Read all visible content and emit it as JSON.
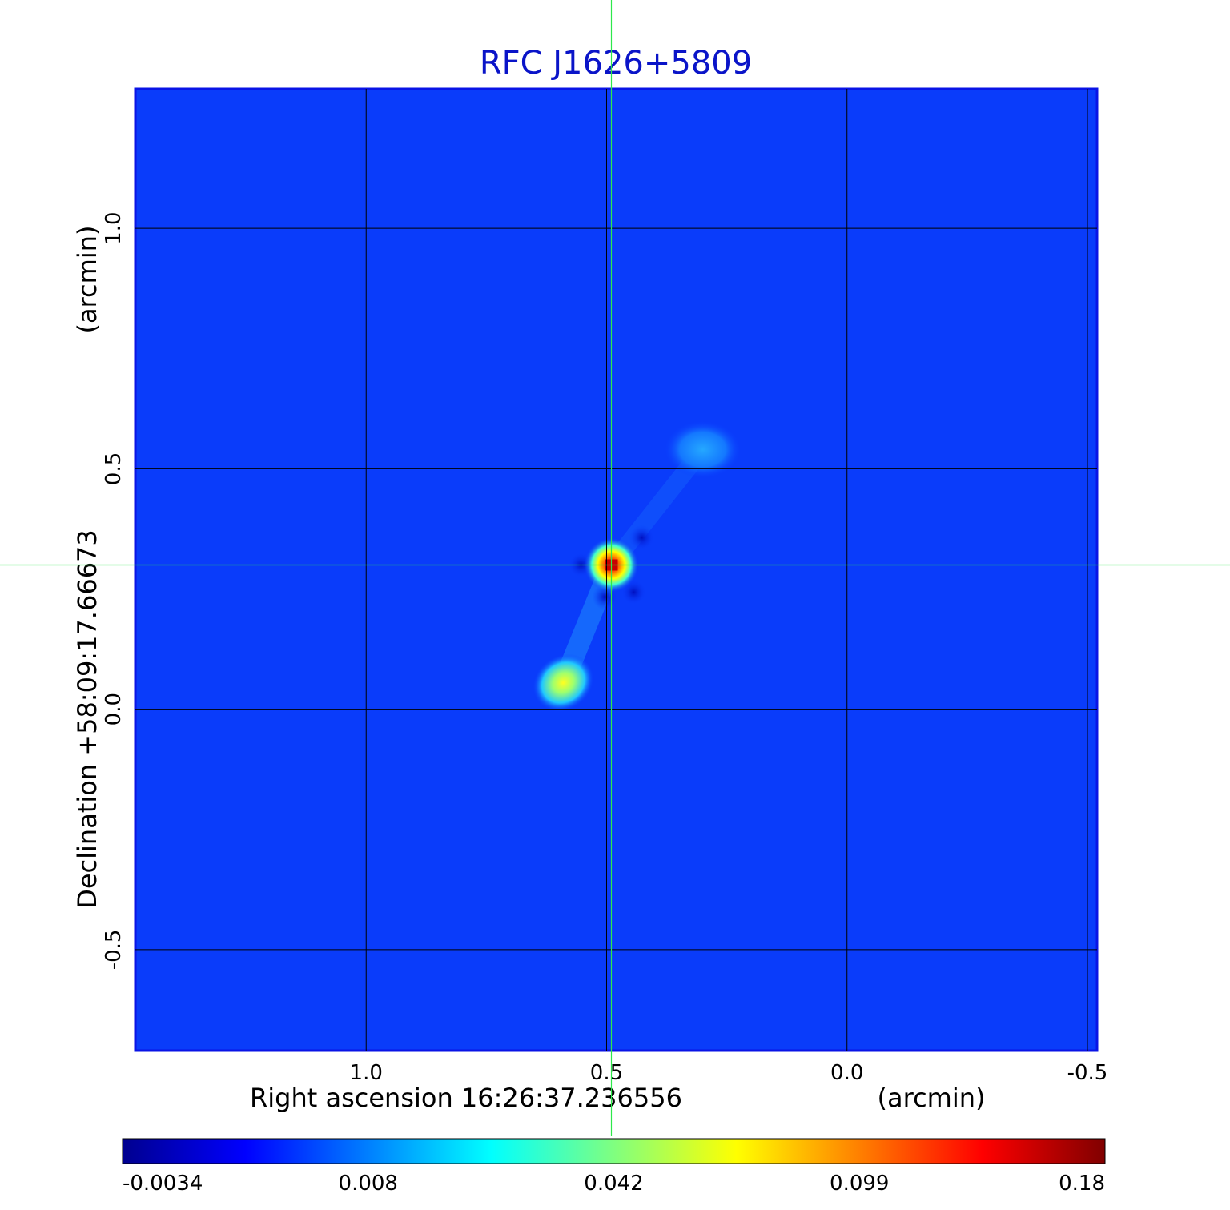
{
  "chart_data": {
    "type": "heatmap",
    "title": "RFC J1626+5809",
    "xlabel": "Right ascension  16:26:37.236556",
    "xunit": "(arcmin)",
    "ylabel": "Declination  +58:09:17.66673",
    "yunit": "(arcmin)",
    "xlim": [
      1.48,
      -0.52
    ],
    "ylim": [
      -0.71,
      1.29
    ],
    "x_ticks": [
      {
        "value": 1.0,
        "label": "1.0"
      },
      {
        "value": 0.5,
        "label": "0.5"
      },
      {
        "value": 0.0,
        "label": "0.0"
      },
      {
        "value": -0.5,
        "label": "-0.5"
      }
    ],
    "y_ticks": [
      {
        "value": 1.0,
        "label": "1.0"
      },
      {
        "value": 0.5,
        "label": "0.5"
      },
      {
        "value": 0.0,
        "label": "0.0"
      },
      {
        "value": -0.5,
        "label": "-0.5"
      }
    ],
    "grid": true,
    "crosshair": {
      "x": 0.49,
      "y": 0.3
    },
    "colormap": "jet",
    "colorbar": {
      "position": "bottom",
      "ticks": [
        "-0.0034",
        "0.008",
        "0.042",
        "0.099",
        "0.18"
      ],
      "range": [
        -0.0034,
        0.18
      ]
    },
    "sources": [
      {
        "x": 0.49,
        "y": 0.3,
        "intensity": 0.18
      },
      {
        "x": 0.59,
        "y": 0.055,
        "intensity": 0.075
      },
      {
        "x": 0.3,
        "y": 0.54,
        "intensity": 0.02
      }
    ],
    "background_level": 0.005
  }
}
